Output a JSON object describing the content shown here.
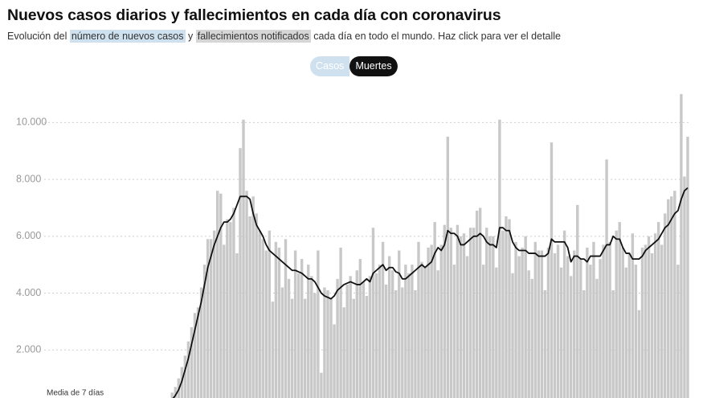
{
  "chart_data": {
    "type": "bar",
    "title": "Nuevos casos diarios y fallecimientos en cada día con coronavirus",
    "subtitle_parts": [
      "Evolución del",
      "número de nuevos casos",
      "y",
      "fallecimientos notificados",
      "cada día en todo el mundo. Haz click para ver el detalle"
    ],
    "buttons": [
      "Casos",
      "Muertes"
    ],
    "ylim": [
      0,
      11000
    ],
    "yticks": [
      {
        "value": 2000,
        "label": "2.000"
      },
      {
        "value": 4000,
        "label": "4.000"
      },
      {
        "value": 6000,
        "label": "6.000"
      },
      {
        "value": 8000,
        "label": "8.000"
      },
      {
        "value": 10000,
        "label": "10.000"
      }
    ],
    "grid": true,
    "series": [
      {
        "type": "bar",
        "color": "#c8c8c8",
        "values": [
          30,
          40,
          60,
          100,
          200,
          300,
          500,
          700,
          1000,
          1400,
          1800,
          2300,
          2800,
          3300,
          3500,
          4200,
          5000,
          5900,
          5900,
          6200,
          7600,
          7500,
          5700,
          6600,
          6500,
          7000,
          5400,
          9100,
          10100,
          7600,
          6700,
          7400,
          6800,
          6200,
          5900,
          5500,
          6200,
          3700,
          5800,
          5600,
          4200,
          5900,
          4500,
          3800,
          5500,
          4700,
          5200,
          3800,
          5000,
          4600,
          4000,
          5500,
          1200,
          4200,
          4100,
          3800,
          2900,
          4500,
          5600,
          3500,
          4300,
          4600,
          3800,
          4800,
          5200,
          4400,
          3900,
          4600,
          6300,
          4700,
          5000,
          5800,
          4300,
          5300,
          4800,
          4100,
          5500,
          4200,
          5000,
          4700,
          5000,
          4100,
          5800,
          5100,
          4900,
          5600,
          5700,
          6500,
          4800,
          5700,
          6400,
          9500,
          6300,
          5000,
          6400,
          6000,
          6100,
          5300,
          6300,
          6300,
          6900,
          7000,
          5000,
          6300,
          6000,
          6000,
          4900,
          10100,
          6200,
          6700,
          6600,
          4700,
          5800,
          5300,
          5600,
          6000,
          4800,
          4500,
          5800,
          5500,
          5500,
          4100,
          5600,
          9300,
          5400,
          5700,
          4900,
          6200,
          5300,
          4600,
          5500,
          7100,
          5200,
          4100,
          5600,
          5000,
          5800,
          4500,
          5200,
          5700,
          8700,
          5800,
          4100,
          6200,
          6500,
          5600,
          4900,
          5400,
          6100,
          5000,
          3400,
          5600,
          5700,
          6000,
          5400,
          6100,
          6500,
          5700,
          6800,
          7300,
          7400,
          7600,
          5000,
          11000,
          8100,
          9500
        ]
      },
      {
        "type": "line",
        "name": "Media de 7 días",
        "color": "#111111",
        "values": [
          20,
          30,
          40,
          60,
          100,
          150,
          250,
          400,
          600,
          900,
          1300,
          1700,
          2200,
          2700,
          3200,
          3700,
          4300,
          4900,
          5300,
          5700,
          6000,
          6300,
          6500,
          6500,
          6600,
          6800,
          7100,
          7400,
          7400,
          7400,
          7300,
          6800,
          6400,
          6200,
          6000,
          5700,
          5500,
          5400,
          5300,
          5200,
          5100,
          5000,
          4900,
          4800,
          4800,
          4750,
          4700,
          4600,
          4500,
          4500,
          4400,
          4200,
          4000,
          3900,
          3850,
          3800,
          3900,
          4100,
          4200,
          4300,
          4350,
          4400,
          4350,
          4300,
          4300,
          4400,
          4500,
          4400,
          4700,
          4800,
          4900,
          5000,
          4800,
          4900,
          4900,
          4750,
          4700,
          4500,
          4500,
          4600,
          4700,
          4800,
          4900,
          5000,
          4900,
          5000,
          5100,
          5400,
          5600,
          5500,
          5700,
          6200,
          6100,
          6100,
          6000,
          5700,
          5700,
          5800,
          5900,
          6000,
          6000,
          6100,
          6000,
          5800,
          5700,
          5700,
          5600,
          6300,
          6300,
          6200,
          6200,
          5800,
          5600,
          5500,
          5500,
          5500,
          5400,
          5400,
          5400,
          5300,
          5300,
          5300,
          5400,
          5900,
          5800,
          5800,
          5800,
          5800,
          5600,
          5100,
          5300,
          5300,
          5200,
          5200,
          5100,
          5300,
          5300,
          5300,
          5300,
          5500,
          5700,
          5700,
          6000,
          5900,
          5900,
          5600,
          5400,
          5400,
          5200,
          5200,
          5200,
          5300,
          5500,
          5600,
          5700,
          5800,
          5900,
          6100,
          6300,
          6400,
          6600,
          6800,
          6900,
          7300,
          7600,
          7700
        ]
      }
    ]
  }
}
